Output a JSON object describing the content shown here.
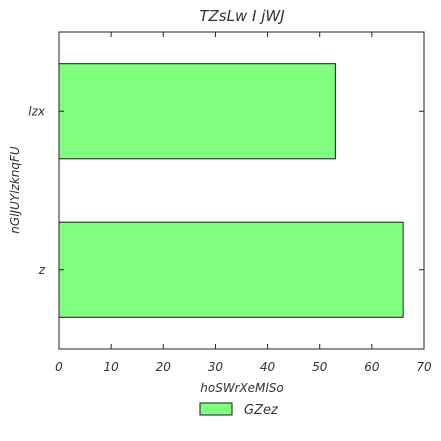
{
  "chart_data": {
    "type": "bar",
    "orientation": "horizontal",
    "title": "TZsLw I jWJ",
    "xlabel": "hoSWrXeMlSo",
    "ylabel": "nGlJUYlzknqFU",
    "categories": [
      "lzx",
      "z"
    ],
    "series": [
      {
        "name": "GZez",
        "values": [
          53,
          66
        ]
      }
    ],
    "xlim": [
      0,
      70
    ],
    "xticks": [
      0,
      10,
      20,
      30,
      40,
      50,
      60,
      70
    ],
    "grid": false,
    "legend_position": "bottom-center",
    "colors": {
      "bar_fill": "#80ff80",
      "bar_stroke": "#1a1a1a"
    }
  }
}
